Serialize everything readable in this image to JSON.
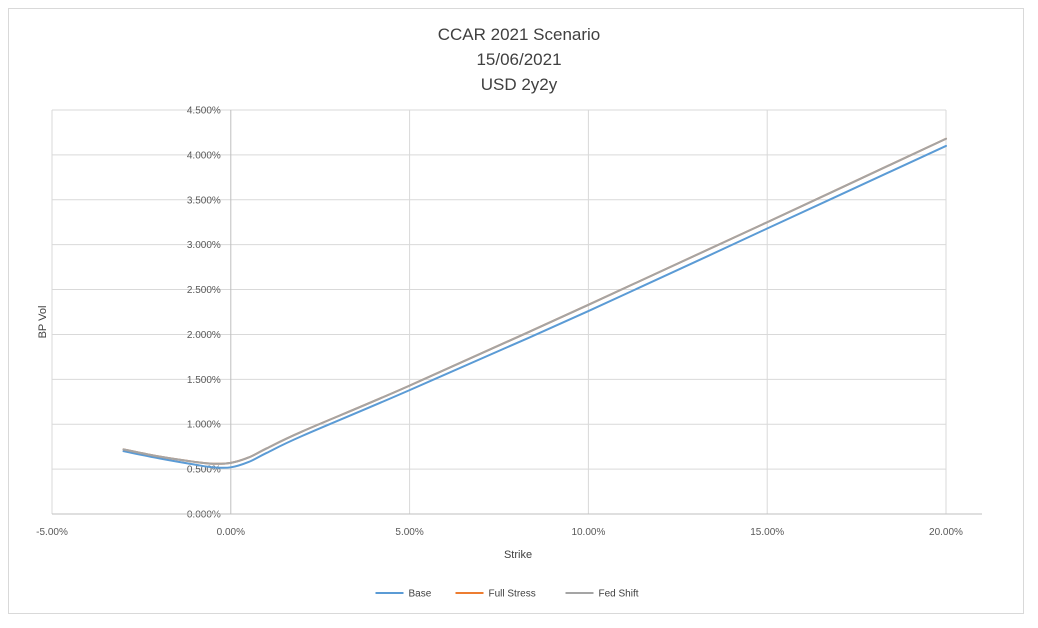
{
  "chart_data": {
    "type": "line",
    "title": [
      "CCAR 2021 Scenario",
      "15/06/2021",
      "USD 2y2y"
    ],
    "xlabel": "Strike",
    "ylabel": "BP Vol",
    "xlim": [
      -0.05,
      0.2
    ],
    "ylim": [
      0,
      0.045
    ],
    "x_ticks": [
      -0.05,
      0,
      0.05,
      0.1,
      0.15,
      0.2
    ],
    "x_tick_labels": [
      "-5.00%",
      "0.00%",
      "5.00%",
      "10.00%",
      "15.00%",
      "20.00%"
    ],
    "y_ticks": [
      0,
      0.005,
      0.01,
      0.015,
      0.02,
      0.025,
      0.03,
      0.035,
      0.04,
      0.045
    ],
    "y_tick_labels": [
      "0.000%",
      "0.500%",
      "1.000%",
      "1.500%",
      "2.000%",
      "2.500%",
      "3.000%",
      "3.500%",
      "4.000%",
      "4.500%"
    ],
    "grid": true,
    "legend_position": "bottom",
    "series": [
      {
        "name": "Base",
        "color": "#5b9bd5",
        "points": [
          [
            -0.03,
            0.007
          ],
          [
            -0.02,
            0.0062
          ],
          [
            -0.01,
            0.0055
          ],
          [
            -0.005,
            0.0052
          ],
          [
            0,
            0.0052
          ],
          [
            0.005,
            0.0058
          ],
          [
            0.01,
            0.0068
          ],
          [
            0.02,
            0.0087
          ],
          [
            0.05,
            0.0138
          ],
          [
            0.1,
            0.0226
          ],
          [
            0.15,
            0.0318
          ],
          [
            0.2,
            0.041
          ]
        ]
      },
      {
        "name": "Full Stress",
        "color": "#ed7d31",
        "points": [
          [
            -0.03,
            0.0072
          ],
          [
            -0.02,
            0.0064
          ],
          [
            -0.01,
            0.0058
          ],
          [
            -0.005,
            0.0056
          ],
          [
            0,
            0.0057
          ],
          [
            0.005,
            0.0063
          ],
          [
            0.01,
            0.0073
          ],
          [
            0.02,
            0.0092
          ],
          [
            0.05,
            0.0143
          ],
          [
            0.1,
            0.0233
          ],
          [
            0.15,
            0.0325
          ],
          [
            0.2,
            0.0418
          ]
        ]
      },
      {
        "name": "Fed Shift",
        "color": "#a5a5a5",
        "points": [
          [
            -0.03,
            0.0072
          ],
          [
            -0.02,
            0.0064
          ],
          [
            -0.01,
            0.0058
          ],
          [
            -0.005,
            0.0056
          ],
          [
            0,
            0.0057
          ],
          [
            0.005,
            0.0063
          ],
          [
            0.01,
            0.0073
          ],
          [
            0.02,
            0.0092
          ],
          [
            0.05,
            0.0143
          ],
          [
            0.1,
            0.0233
          ],
          [
            0.15,
            0.0325
          ],
          [
            0.2,
            0.0418
          ]
        ]
      }
    ]
  }
}
